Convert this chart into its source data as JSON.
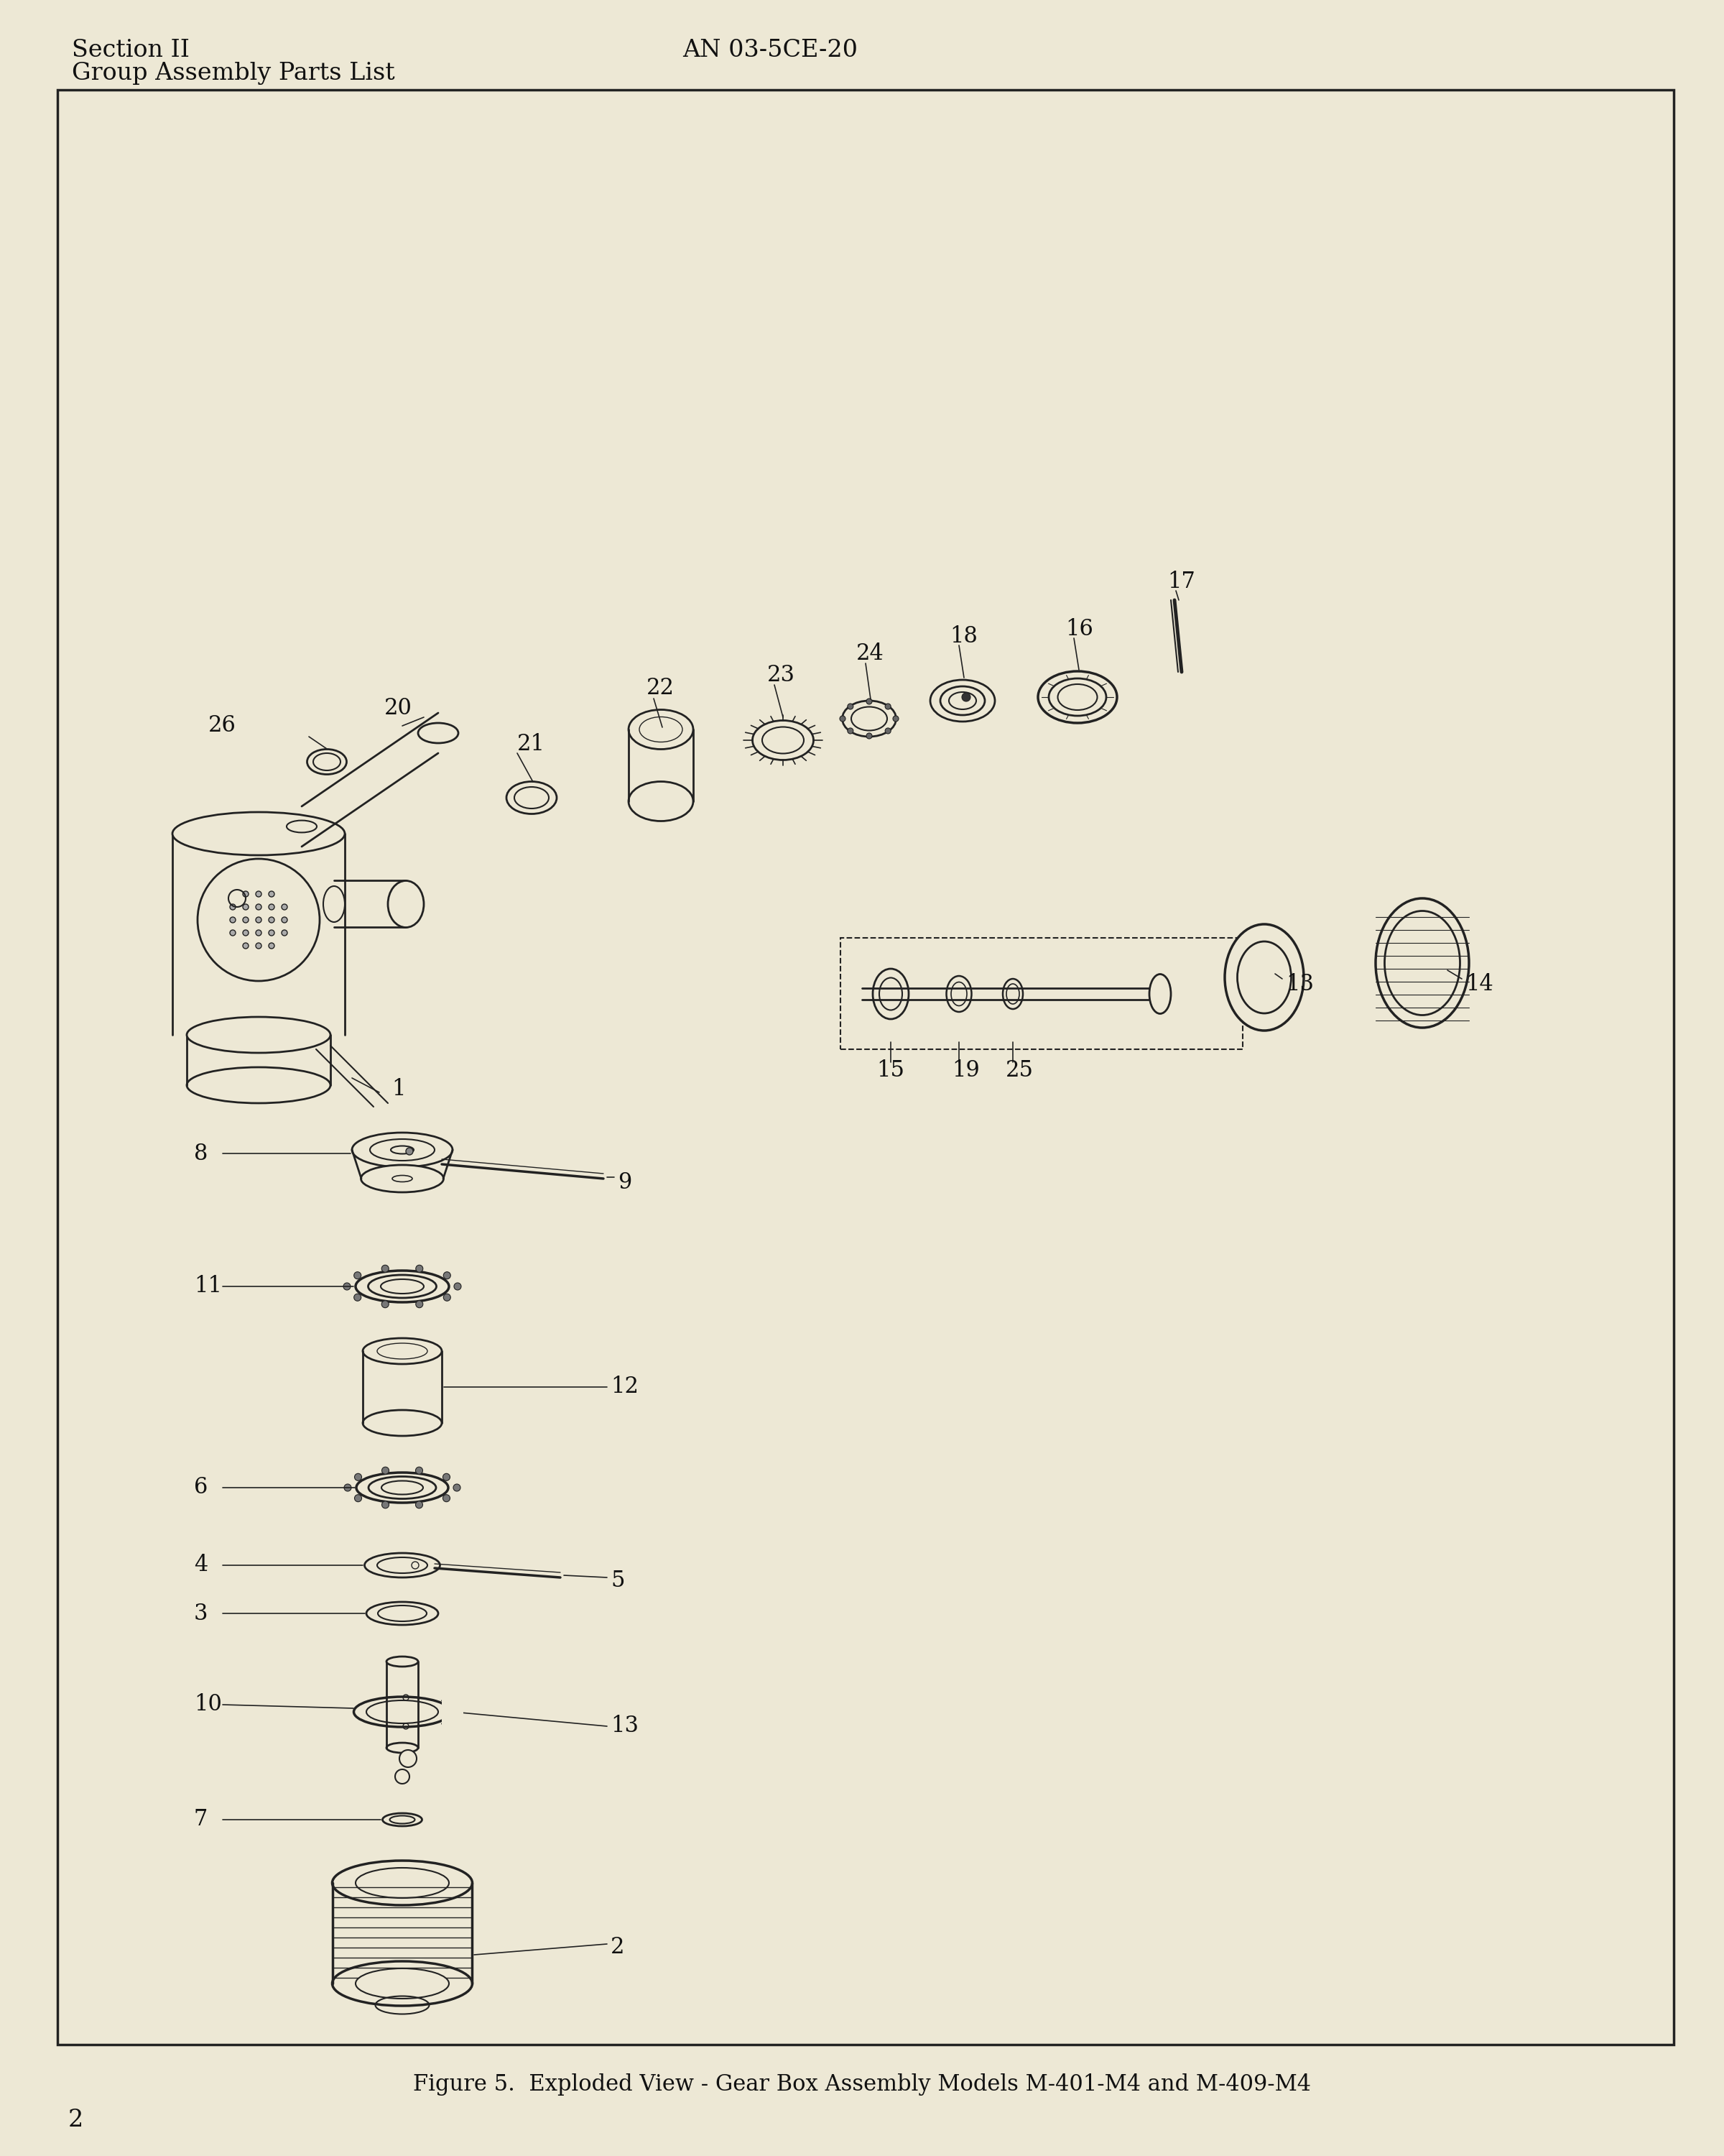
{
  "bg_color": "#ede8d5",
  "paper_color": "#ede8d5",
  "header_left_line1": "Section II",
  "header_left_line2": "Group Assembly Parts List",
  "header_center": "AN 03-5CE-20",
  "figure_caption": "Figure 5.  Exploded View - Gear Box Assembly Models M-401-M4 and M-409-M4",
  "page_number": "2",
  "text_color": "#111111",
  "line_color": "#111111",
  "draw_color": "#222222"
}
